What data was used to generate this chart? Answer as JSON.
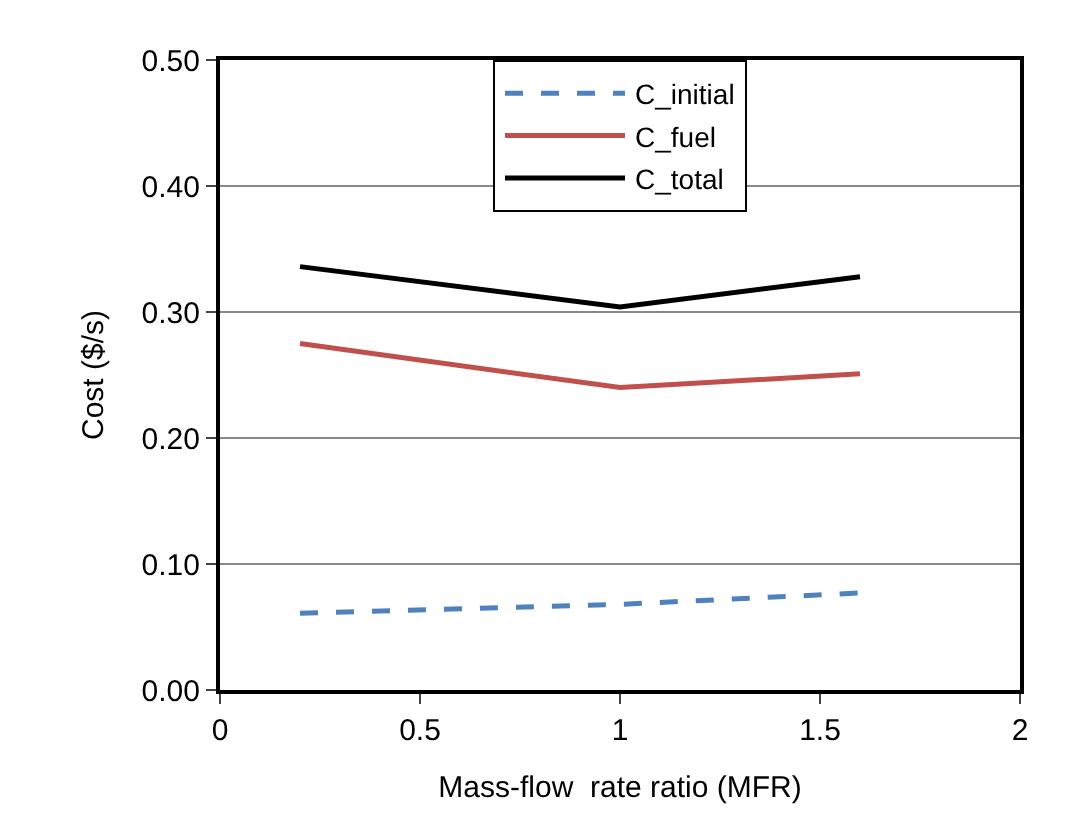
{
  "chart_data": {
    "type": "line",
    "xlabel": "Mass-flow  rate ratio (MFR)",
    "ylabel": "Cost ($/s)",
    "x": [
      0.2,
      1,
      1.6
    ],
    "series": [
      {
        "name": "C_initial",
        "color": "#4f81bd",
        "line_style": "dashed",
        "values": [
          0.061,
          0.068,
          0.077
        ]
      },
      {
        "name": "C_fuel",
        "color": "#c0504d",
        "line_style": "solid",
        "values": [
          0.275,
          0.24,
          0.251
        ]
      },
      {
        "name": "C_total",
        "color": "#000000",
        "line_style": "solid",
        "values": [
          0.336,
          0.304,
          0.328
        ]
      }
    ],
    "xlim": [
      0,
      2
    ],
    "xticks": [
      0,
      0.5,
      1,
      1.5,
      2
    ],
    "ylim": [
      0,
      0.5
    ],
    "yticks": [
      {
        "value": 0,
        "label": "0.00"
      },
      {
        "value": 0.1,
        "label": "0.10"
      },
      {
        "value": 0.2,
        "label": "0.20"
      },
      {
        "value": 0.3,
        "label": "0.30"
      },
      {
        "value": 0.4,
        "label": "0.40"
      },
      {
        "value": 0.5,
        "label": "0.50"
      }
    ],
    "grid": "y",
    "legend": "top",
    "marker": "none"
  }
}
